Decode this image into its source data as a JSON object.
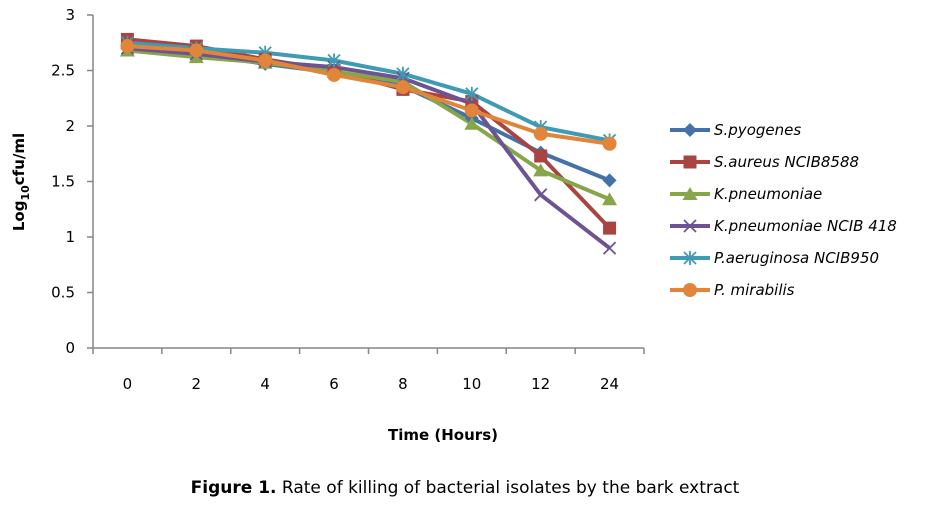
{
  "chart_data": {
    "type": "line",
    "title": "",
    "xlabel": "Time (Hours)",
    "ylabel_main": "Log",
    "ylabel_sub": "10",
    "ylabel_rest": "cfu/ml",
    "ylabel": "Log10cfu/ml",
    "categories": [
      "0",
      "2",
      "4",
      "6",
      "8",
      "10",
      "12",
      "24"
    ],
    "ylim": [
      0,
      3
    ],
    "yticks": [
      0,
      0.5,
      1,
      1.5,
      2,
      2.5,
      3
    ],
    "ytick_labels": [
      "0",
      "0.5",
      "1",
      "1.5",
      "2",
      "2.5",
      "3"
    ],
    "grid": false,
    "legend_position": "right",
    "series": [
      {
        "name": "S.pyogenes",
        "color": "#4472A8",
        "marker": "diamond",
        "values": [
          2.7,
          2.65,
          2.56,
          2.48,
          2.36,
          2.07,
          1.76,
          1.51
        ]
      },
      {
        "name": "S.aureus NCIB8588",
        "color": "#A94441",
        "marker": "square",
        "values": [
          2.78,
          2.72,
          2.6,
          2.5,
          2.33,
          2.22,
          1.73,
          1.08
        ]
      },
      {
        "name": "K.pneumoniae",
        "color": "#87A64B",
        "marker": "triangle",
        "values": [
          2.68,
          2.62,
          2.57,
          2.49,
          2.4,
          2.02,
          1.6,
          1.34
        ]
      },
      {
        "name": "K.pneumoniae NCIB 418",
        "color": "#6E5393",
        "marker": "x",
        "values": [
          2.7,
          2.65,
          2.58,
          2.53,
          2.43,
          2.2,
          1.38,
          0.9
        ]
      },
      {
        "name": "P.aeruginosa NCIB950",
        "color": "#3E9BB3",
        "marker": "star",
        "values": [
          2.75,
          2.7,
          2.66,
          2.59,
          2.47,
          2.29,
          1.99,
          1.87
        ]
      },
      {
        "name": "P. mirabilis",
        "color": "#E0853A",
        "marker": "circle",
        "values": [
          2.72,
          2.68,
          2.59,
          2.46,
          2.35,
          2.14,
          1.93,
          1.84
        ]
      }
    ]
  },
  "caption": {
    "label": "Figure 1.",
    "text": " Rate of killing of bacterial isolates by the bark extract"
  }
}
